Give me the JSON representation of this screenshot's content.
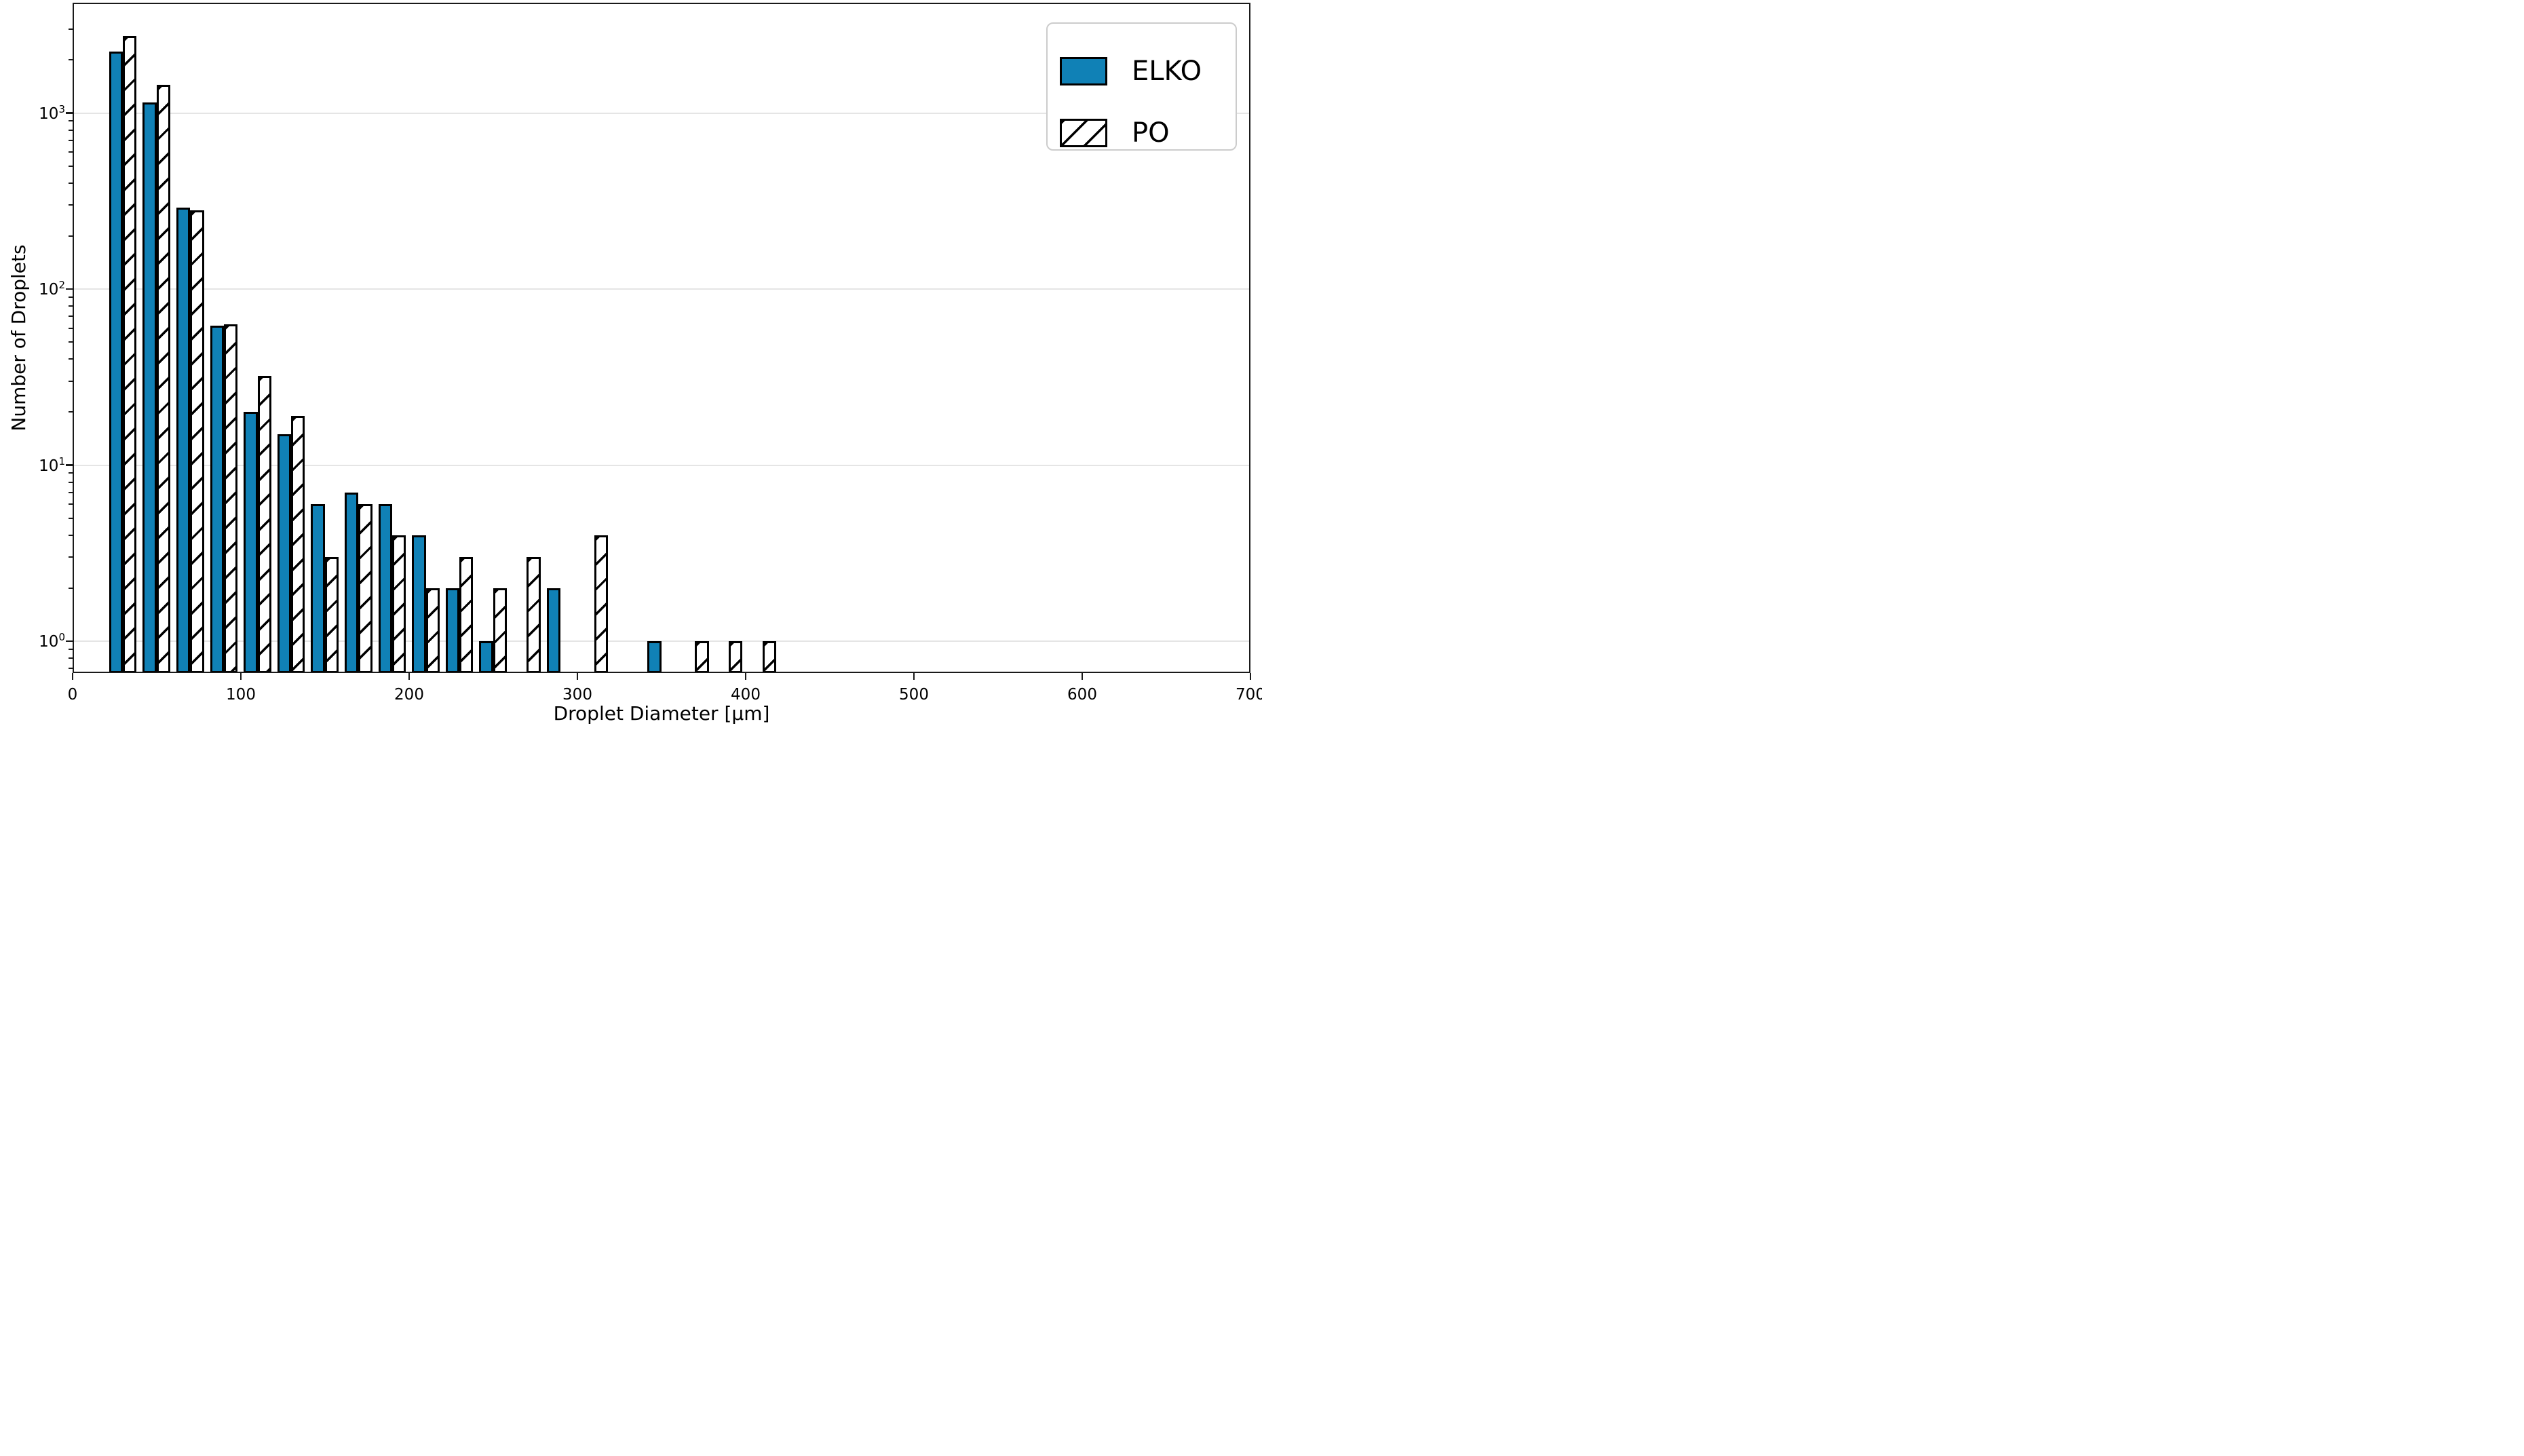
{
  "chart_data": {
    "type": "bar",
    "title": "",
    "xlabel": "Droplet Diameter [μm]",
    "ylabel": "Number of Droplets",
    "yscale": "log",
    "grid": "horizontal-major",
    "legend_position": "upper-right",
    "xlim": [
      0,
      700
    ],
    "ylim": [
      0.65,
      3950
    ],
    "xticks": [
      0,
      100,
      200,
      300,
      400,
      500,
      600,
      700
    ],
    "yticks": [
      {
        "value": 1,
        "base": "10",
        "exp": "0"
      },
      {
        "value": 10,
        "base": "10",
        "exp": "1"
      },
      {
        "value": 100,
        "base": "10",
        "exp": "2"
      },
      {
        "value": 1000,
        "base": "10",
        "exp": "3"
      }
    ],
    "bin_width_um": 20,
    "bin_starts": [
      20,
      40,
      60,
      80,
      100,
      120,
      140,
      160,
      180,
      200,
      220,
      240,
      260,
      280,
      300,
      320,
      340,
      360,
      380,
      400
    ],
    "bar_offset_um": 1.7,
    "bar_width_um": 8.2,
    "series": [
      {
        "name": "ELKO",
        "style": "solid",
        "fill": "#1081b6",
        "values": [
          2230,
          1150,
          290,
          62,
          20,
          15,
          6,
          7,
          6,
          4,
          2,
          1,
          0,
          2,
          0,
          0,
          1,
          0,
          0,
          0
        ]
      },
      {
        "name": "PO",
        "style": "hatch",
        "fill": "#ffffff",
        "hatch": "//",
        "values": [
          2730,
          1450,
          280,
          63,
          32,
          19,
          3,
          6,
          4,
          2,
          3,
          2,
          3,
          0,
          4,
          0,
          0,
          1,
          1,
          1
        ]
      }
    ],
    "colors": {
      "bar_edge": "#000000",
      "grid": "#e5e5e5",
      "spine": "#1a1a1a",
      "text": "#000000",
      "background": "#ffffff",
      "legend_border": "#cccccc"
    }
  }
}
